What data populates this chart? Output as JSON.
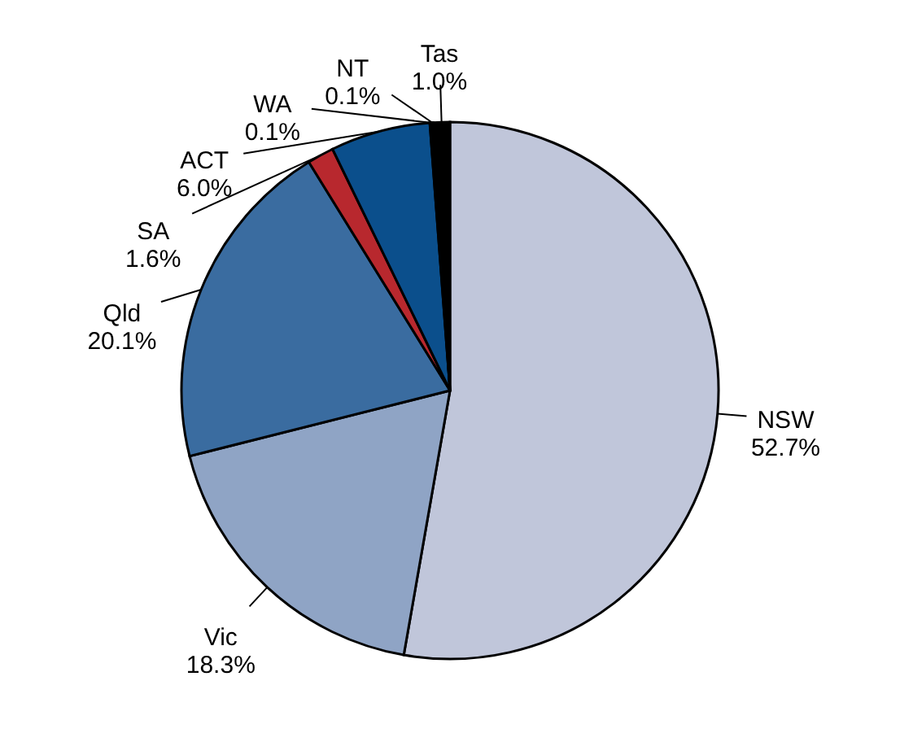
{
  "chart_data": {
    "type": "pie",
    "categories": [
      "NSW",
      "Vic",
      "Qld",
      "SA",
      "ACT",
      "WA",
      "NT",
      "Tas"
    ],
    "values": [
      52.7,
      18.3,
      20.1,
      1.6,
      6.0,
      0.1,
      0.1,
      1.0
    ],
    "value_labels": [
      "52.7%",
      "18.3%",
      "20.1%",
      "1.6%",
      "6.0%",
      "0.1%",
      "0.1%",
      "1.0%"
    ],
    "colors": [
      "#c0c6da",
      "#8fa4c5",
      "#3a6ca0",
      "#b8282e",
      "#0b4f8c",
      "#a6a6a6",
      "#d9d9d9",
      "#000000"
    ],
    "legend": false
  }
}
